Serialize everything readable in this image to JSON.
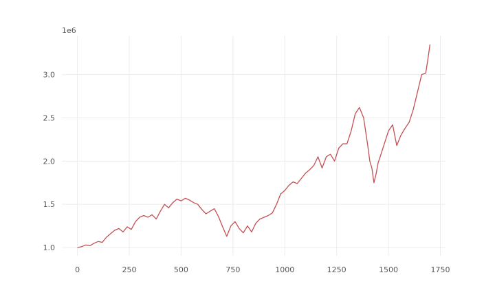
{
  "chart_data": {
    "type": "line",
    "title": "",
    "xlabel": "",
    "ylabel": "",
    "y_scale_label": "1e6",
    "xlim": [
      -75,
      1775
    ],
    "ylim": [
      0.905,
      3.45
    ],
    "x_ticks": [
      0,
      250,
      500,
      750,
      1000,
      1250,
      1500,
      1750
    ],
    "y_ticks": [
      1.0,
      1.5,
      2.0,
      2.5,
      3.0
    ],
    "x_tick_labels": [
      "0",
      "250",
      "500",
      "750",
      "1000",
      "1250",
      "1500",
      "1750"
    ],
    "y_tick_labels": [
      "1.0",
      "1.5",
      "2.0",
      "2.5",
      "3.0"
    ],
    "grid": true,
    "line_color": "#c44e52",
    "series": [
      {
        "x": [
          0,
          20,
          40,
          60,
          80,
          100,
          120,
          140,
          160,
          180,
          200,
          220,
          240,
          260,
          280,
          300,
          320,
          340,
          360,
          380,
          400,
          420,
          440,
          460,
          480,
          500,
          520,
          540,
          560,
          580,
          600,
          620,
          640,
          660,
          680,
          700,
          720,
          740,
          760,
          780,
          800,
          820,
          840,
          860,
          880,
          900,
          920,
          940,
          960,
          980,
          1000,
          1020,
          1040,
          1060,
          1080,
          1100,
          1120,
          1140,
          1160,
          1180,
          1200,
          1220,
          1240,
          1260,
          1280,
          1300,
          1320,
          1340,
          1360,
          1380,
          1400,
          1410,
          1420,
          1430,
          1440,
          1450,
          1460,
          1480,
          1500,
          1520,
          1540,
          1560,
          1580,
          1600,
          1620,
          1640,
          1660,
          1680,
          1690,
          1700
        ],
        "y": [
          1.0,
          1.01,
          1.03,
          1.02,
          1.05,
          1.07,
          1.06,
          1.12,
          1.16,
          1.2,
          1.22,
          1.18,
          1.24,
          1.21,
          1.3,
          1.35,
          1.37,
          1.35,
          1.38,
          1.33,
          1.42,
          1.5,
          1.46,
          1.52,
          1.56,
          1.54,
          1.57,
          1.55,
          1.52,
          1.5,
          1.44,
          1.39,
          1.42,
          1.45,
          1.36,
          1.24,
          1.13,
          1.25,
          1.3,
          1.22,
          1.17,
          1.25,
          1.18,
          1.28,
          1.33,
          1.35,
          1.37,
          1.4,
          1.5,
          1.62,
          1.66,
          1.72,
          1.76,
          1.74,
          1.8,
          1.86,
          1.9,
          1.95,
          2.05,
          1.92,
          2.05,
          2.08,
          2.0,
          2.15,
          2.2,
          2.2,
          2.35,
          2.55,
          2.62,
          2.5,
          2.18,
          2.0,
          1.92,
          1.75,
          1.85,
          1.98,
          2.05,
          2.2,
          2.35,
          2.42,
          2.18,
          2.3,
          2.38,
          2.45,
          2.6,
          2.8,
          3.0,
          3.02,
          3.18,
          3.35
        ]
      }
    ]
  }
}
